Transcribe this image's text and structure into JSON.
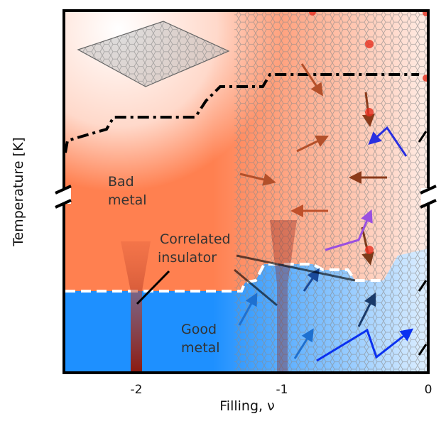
{
  "figure": {
    "y_axis_label": "Temperature [K]",
    "x_axis_label": "Filling, ν",
    "x_ticks": [
      "-2",
      "-1",
      "0"
    ],
    "regions": {
      "bad_metal": [
        "Bad",
        "metal"
      ],
      "correlated_insulator": [
        "Correlated",
        "insulator"
      ],
      "good_metal": [
        "Good",
        "metal"
      ]
    },
    "colors": {
      "bad_metal": "#ff8050",
      "good_metal": "#1e90ff",
      "insulator": "#8b1a10",
      "lattice": "#9a9a9a"
    }
  }
}
